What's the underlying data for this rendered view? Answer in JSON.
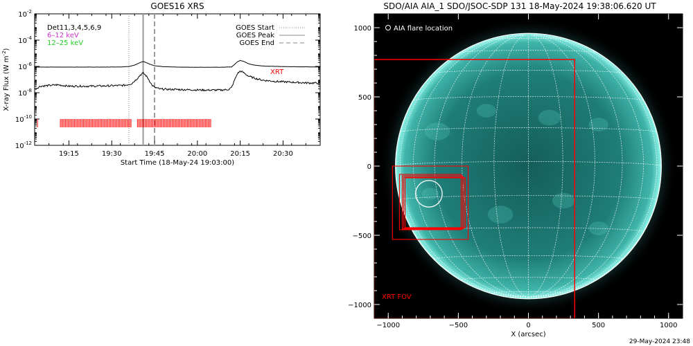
{
  "chart_data": [
    {
      "type": "line",
      "title": "GOES16 XRS",
      "xlabel": "Start Time (18-May-24 19:03:00)",
      "ylabel_main": "X-ray Flux (W m",
      "ylabel_exp": "-2",
      "ylabel_close": ")",
      "yscale": "log",
      "x_range_min": [
        0,
        100
      ],
      "y_exp_range": [
        -12,
        -2
      ],
      "xticks": [
        {
          "label": "19:15",
          "min": 12
        },
        {
          "label": "19:30",
          "min": 27
        },
        {
          "label": "19:45",
          "min": 42
        },
        {
          "label": "20:00",
          "min": 57
        },
        {
          "label": "20:15",
          "min": 72
        },
        {
          "label": "20:30",
          "min": 87
        }
      ],
      "yticks": [
        {
          "base": "10",
          "exp": "-2",
          "e": -2
        },
        {
          "base": "10",
          "exp": "-4",
          "e": -4
        },
        {
          "base": "10",
          "exp": "-6",
          "e": -6
        },
        {
          "base": "10",
          "exp": "-8",
          "e": -8
        },
        {
          "base": "10",
          "exp": "-10",
          "e": -10
        },
        {
          "base": "10",
          "exp": "-12",
          "e": -12
        }
      ],
      "legend_left": [
        {
          "label": "Det11,3,4,5,6,9",
          "color": "#000000"
        },
        {
          "label": "6–12 keV",
          "color": "#cc33cc"
        },
        {
          "label": "12–25 keV",
          "color": "#22cc22"
        }
      ],
      "legend_right": [
        {
          "label": "GOES Start",
          "style": "dotted"
        },
        {
          "label": "GOES Peak",
          "style": "solid"
        },
        {
          "label": "GOES End",
          "style": "dashed"
        }
      ],
      "vlines": {
        "start_min": 33,
        "peak_min": 38,
        "end_min": 42
      },
      "series": [
        {
          "id": "long",
          "color": "#000000",
          "x": [
            0,
            5,
            10,
            15,
            20,
            25,
            30,
            33,
            35,
            36,
            37,
            38,
            39,
            40,
            41,
            42,
            45,
            50,
            55,
            60,
            65,
            69,
            70,
            71,
            72,
            73,
            74,
            75,
            77,
            80,
            85,
            90,
            95,
            100
          ],
          "y_exp": [
            -6.05,
            -6.05,
            -6.05,
            -6.05,
            -6.05,
            -6.05,
            -6.04,
            -6.0,
            -5.9,
            -5.8,
            -5.7,
            -5.62,
            -5.7,
            -5.8,
            -5.88,
            -5.95,
            -6.02,
            -6.05,
            -6.06,
            -6.06,
            -6.06,
            -6.04,
            -5.85,
            -5.65,
            -5.55,
            -5.6,
            -5.7,
            -5.8,
            -5.9,
            -5.97,
            -6.0,
            -6.02,
            -6.03,
            -6.04
          ]
        },
        {
          "id": "short",
          "color": "#000000",
          "x": [
            0,
            2,
            5,
            8,
            10,
            12,
            15,
            20,
            25,
            30,
            32,
            34,
            35,
            36,
            37,
            38,
            39,
            40,
            41,
            42,
            44,
            47,
            50,
            55,
            60,
            65,
            68,
            69,
            70,
            71,
            72,
            73,
            75,
            78,
            80,
            85,
            90,
            95,
            100
          ],
          "y_exp": [
            -7.75,
            -7.5,
            -7.45,
            -7.4,
            -7.45,
            -7.5,
            -7.5,
            -7.5,
            -7.48,
            -7.45,
            -7.42,
            -7.3,
            -7.1,
            -6.9,
            -6.65,
            -6.5,
            -6.7,
            -7.0,
            -7.4,
            -7.6,
            -7.72,
            -7.75,
            -7.75,
            -7.78,
            -7.8,
            -7.8,
            -7.75,
            -7.6,
            -7.05,
            -6.55,
            -6.35,
            -6.45,
            -6.75,
            -6.95,
            -7.05,
            -7.15,
            -7.2,
            -7.25,
            -7.27
          ]
        }
      ],
      "xrt_label": "XRT",
      "xrt_color": "#ff0000",
      "xrt_obs_ranges_min": [
        [
          1,
          1
        ],
        [
          9,
          34
        ],
        [
          36,
          62
        ]
      ]
    },
    {
      "type": "scatter",
      "title": "SDO/AIA AIA_1 SDO/JSOC-SDP 131 18-May-2024 19:38:06.620 UT",
      "xlabel": "X (arcsec)",
      "ylabel": "",
      "xlim": [
        -1100,
        1100
      ],
      "ylim": [
        -1100,
        1100
      ],
      "xticks": [
        -1000,
        -500,
        0,
        500,
        1000
      ],
      "yticks": [
        -1000,
        -500,
        0,
        500,
        1000
      ],
      "xtick_labels": [
        "−1000",
        "−500",
        "0",
        "500",
        "1000"
      ],
      "ytick_labels": [
        "−1000",
        "−500",
        "0",
        "500",
        "1000"
      ],
      "solar_radius_arcsec": 948,
      "flare_legend": "AIA flare location",
      "flare_location": {
        "x": -710,
        "y": -200,
        "r": 95
      },
      "xrt_fov_label": "XRT FOV",
      "xrt_fov": {
        "x0": -1100,
        "x1": 330,
        "y0": -1100,
        "y1": 770
      },
      "xrt_boxes": [
        {
          "x0": -970,
          "x1": -430,
          "y0": -530,
          "y1": 0
        },
        {
          "x0": -920,
          "x1": -480,
          "y0": -460,
          "y1": -60
        },
        {
          "x0": -900,
          "x1": -470,
          "y0": -455,
          "y1": -70
        },
        {
          "x0": -890,
          "x1": -460,
          "y0": -450,
          "y1": -80
        },
        {
          "x0": -880,
          "x1": -450,
          "y0": -445,
          "y1": -85
        }
      ],
      "box_color": "#ff0000",
      "grid_color": "#ffffff",
      "disk_color": "#1f7d78",
      "limb_color": "#8ff5ea",
      "timestamp": "29-May-2024 23:48"
    }
  ]
}
